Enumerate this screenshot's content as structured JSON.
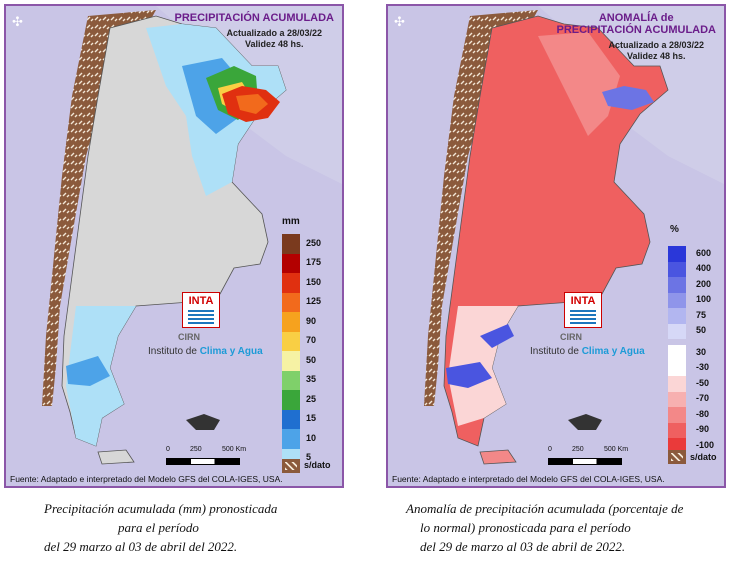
{
  "left_panel": {
    "title": "PRECIPITACIÓN ACUMULADA",
    "update": "Actualizado a 28/03/22",
    "validity": "Validez 48 hs.",
    "legend_unit": "mm",
    "legend": [
      {
        "label": "250",
        "color": "#7a3a1e"
      },
      {
        "label": "175",
        "color": "#b30000"
      },
      {
        "label": "150",
        "color": "#e03010"
      },
      {
        "label": "125",
        "color": "#f26a1c"
      },
      {
        "label": "90",
        "color": "#f6a21e"
      },
      {
        "label": "70",
        "color": "#f9cf44"
      },
      {
        "label": "50",
        "color": "#f6f2a4"
      },
      {
        "label": "35",
        "color": "#7fd06a"
      },
      {
        "label": "25",
        "color": "#3aa63a"
      },
      {
        "label": "15",
        "color": "#1f6fd0"
      },
      {
        "label": "10",
        "color": "#4da3e8"
      },
      {
        "label": "5",
        "color": "#aee0f7"
      }
    ],
    "no_data_label": "s/dato",
    "logo_text": "INTA",
    "cirn": "CIRN",
    "institute_prefix": "Instituto de ",
    "institute_highlight": "Clima y Agua",
    "scale_0": "0",
    "scale_250": "250",
    "scale_500": "500 Km",
    "source": "Fuente: Adaptado e interpretado del Modelo GFS del COLA-IGES, USA."
  },
  "right_panel": {
    "title_line1": "ANOMALÍA de",
    "title_line2": "PRECIPITACIÓN ACUMULADA",
    "update": "Actualizado a 28/03/22",
    "validity": "Validez 48 hs.",
    "legend_unit": "%",
    "legend": [
      {
        "label": "600",
        "color": "#2a37d9"
      },
      {
        "label": "400",
        "color": "#4a55e0"
      },
      {
        "label": "200",
        "color": "#6c74e4"
      },
      {
        "label": "100",
        "color": "#8f95ea"
      },
      {
        "label": "75",
        "color": "#b2b6f0"
      },
      {
        "label": "50",
        "color": "#d6d8f7"
      },
      {
        "label": "30",
        "color": "#ffffff"
      },
      {
        "label": "-30",
        "color": "#ffffff"
      },
      {
        "label": "-50",
        "color": "#fbd6d6"
      },
      {
        "label": "-70",
        "color": "#f7b0b0"
      },
      {
        "label": "-80",
        "color": "#f38888"
      },
      {
        "label": "-90",
        "color": "#ef6060"
      },
      {
        "label": "-100",
        "color": "#ea3a3a"
      }
    ],
    "no_data_label": "s/dato",
    "logo_text": "INTA",
    "cirn": "CIRN",
    "institute_prefix": "Instituto de ",
    "institute_highlight": "Clima y Agua",
    "scale_0": "0",
    "scale_250": "250",
    "scale_500": "500 Km",
    "source": "Fuente: Adaptado e interpretado del Modelo GFS del COLA-IGES, USA."
  },
  "captions": {
    "left_line1": "Precipitación acumulada (mm) pronosticada",
    "left_line2": "para el período",
    "left_line3": "del 29 marzo al 03 de abril del 2022.",
    "right_line1": "Anomalía de precipitación acumulada (porcentaje de",
    "right_line2": "lo normal) pronosticada para el período",
    "right_line3": "del 29  de marzo al 03 de abril de 2022."
  }
}
